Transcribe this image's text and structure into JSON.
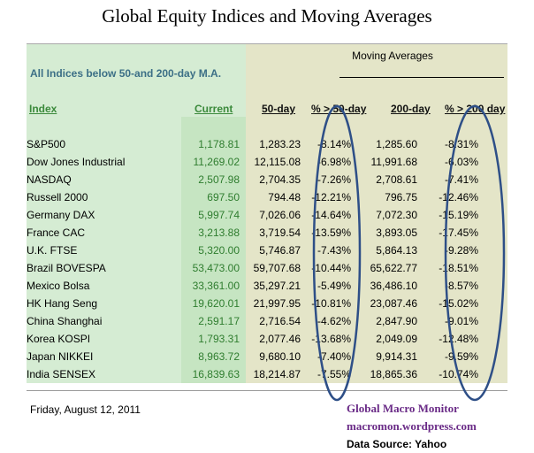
{
  "title": "Global Equity Indices and Moving Averages",
  "subtitle": "All Indices below 50-and 200-day M.A.",
  "moving_averages_label": "Moving Averages",
  "headers": {
    "index": "Index",
    "current": "Current",
    "ma50": "50-day",
    "pct50": "% > 50-day",
    "ma200": "200-day",
    "pct200": "% > 200 day"
  },
  "rows": [
    {
      "index": "S&P500",
      "current": "1,178.81",
      "ma50": "1,283.23",
      "pct50": "-8.14%",
      "ma200": "1,285.60",
      "pct200": "-8.31%"
    },
    {
      "index": "Dow Jones Industrial",
      "current": "11,269.02",
      "ma50": "12,115.08",
      "pct50": "-6.98%",
      "ma200": "11,991.68",
      "pct200": "-6.03%"
    },
    {
      "index": "NASDAQ",
      "current": "2,507.98",
      "ma50": "2,704.35",
      "pct50": "-7.26%",
      "ma200": "2,708.61",
      "pct200": "-7.41%"
    },
    {
      "index": "Russell 2000",
      "current": "697.50",
      "ma50": "794.48",
      "pct50": "-12.21%",
      "ma200": "796.75",
      "pct200": "-12.46%"
    },
    {
      "index": "Germany DAX",
      "current": "5,997.74",
      "ma50": "7,026.06",
      "pct50": "-14.64%",
      "ma200": "7,072.30",
      "pct200": "-15.19%"
    },
    {
      "index": "France CAC",
      "current": "3,213.88",
      "ma50": "3,719.54",
      "pct50": "-13.59%",
      "ma200": "3,893.05",
      "pct200": "-17.45%"
    },
    {
      "index": "U.K. FTSE",
      "current": "5,320.00",
      "ma50": "5,746.87",
      "pct50": "-7.43%",
      "ma200": "5,864.13",
      "pct200": "-9.28%"
    },
    {
      "index": "Brazil BOVESPA",
      "current": "53,473.00",
      "ma50": "59,707.68",
      "pct50": "-10.44%",
      "ma200": "65,622.77",
      "pct200": "-18.51%"
    },
    {
      "index": "Mexico Bolsa",
      "current": "33,361.00",
      "ma50": "35,297.21",
      "pct50": "-5.49%",
      "ma200": "36,486.10",
      "pct200": "-8.57%"
    },
    {
      "index": "HK  Hang Seng",
      "current": "19,620.01",
      "ma50": "21,997.95",
      "pct50": "-10.81%",
      "ma200": "23,087.46",
      "pct200": "-15.02%"
    },
    {
      "index": "China Shanghai",
      "current": "2,591.17",
      "ma50": "2,716.54",
      "pct50": "-4.62%",
      "ma200": "2,847.90",
      "pct200": "-9.01%"
    },
    {
      "index": "Korea KOSPI",
      "current": "1,793.31",
      "ma50": "2,077.46",
      "pct50": "-13.68%",
      "ma200": "2,049.09",
      "pct200": "-12.48%"
    },
    {
      "index": "Japan NIKKEI",
      "current": "8,963.72",
      "ma50": "9,680.10",
      "pct50": "-7.40%",
      "ma200": "9,914.31",
      "pct200": "-9.59%"
    },
    {
      "index": "India SENSEX",
      "current": "16,839.63",
      "ma50": "18,214.87",
      "pct50": "-7.55%",
      "ma200": "18,865.36",
      "pct200": "-10.74%"
    }
  ],
  "footer": {
    "date": "Friday, August 12, 2011",
    "brand": "Global Macro Monitor",
    "url": "macromon.wordpress.com",
    "source": "Data Source: Yahoo"
  },
  "colors": {
    "green_panel": "#d5ecd3",
    "tan_panel": "#e4e5c8",
    "oval": "#2e4f87",
    "brand": "#6a2b87"
  }
}
